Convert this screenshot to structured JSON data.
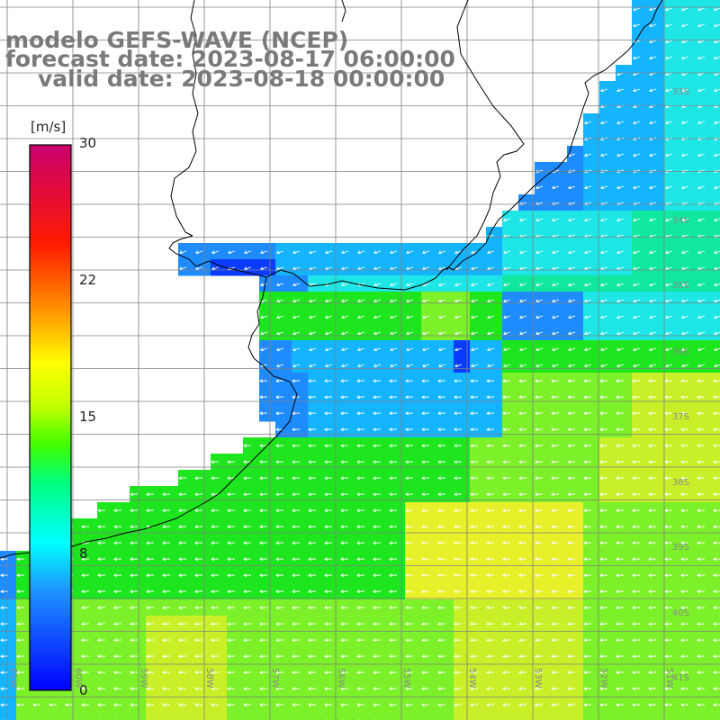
{
  "title": {
    "line1": "modelo GEFS-WAVE (NCEP)",
    "line2": "forecast date: 2023-08-17 06:00:00",
    "line3": "valid date: 2023-08-18 00:00:00"
  },
  "colorbar": {
    "unit": "[m/s]",
    "ticks": [
      "30",
      "22",
      "15",
      "8",
      "0"
    ],
    "tick_values": [
      30,
      22,
      15,
      8,
      0
    ],
    "min": 0,
    "max": 30,
    "colors": [
      "#0000ff",
      "#00c8ff",
      "#00ffff",
      "#00ff40",
      "#80ff00",
      "#ffff00",
      "#ff8000",
      "#ff0000",
      "#c8006e"
    ]
  },
  "map": {
    "lat_labels": [
      "33S",
      "34S",
      "35S",
      "36S",
      "37S",
      "38S",
      "39S",
      "40S",
      "41S"
    ],
    "lon_labels": [
      "61W",
      "60W",
      "59W",
      "58W",
      "57W",
      "56W",
      "55W",
      "54W",
      "53W",
      "52W",
      "51W"
    ],
    "land_color": "#ffffff",
    "coast_color": "#000000",
    "grid_color": "#808080",
    "arrow_color": "#ffffff",
    "colors": {
      "dark_blue": "#0a3cff",
      "blue": "#1e8cff",
      "light_blue": "#14b4ff",
      "cyan": "#1ee6e6",
      "teal": "#10e8a0",
      "green": "#1ee61e",
      "light_green": "#7cf028",
      "yellow_green": "#c8f028",
      "yellow": "#e8f02a"
    }
  }
}
